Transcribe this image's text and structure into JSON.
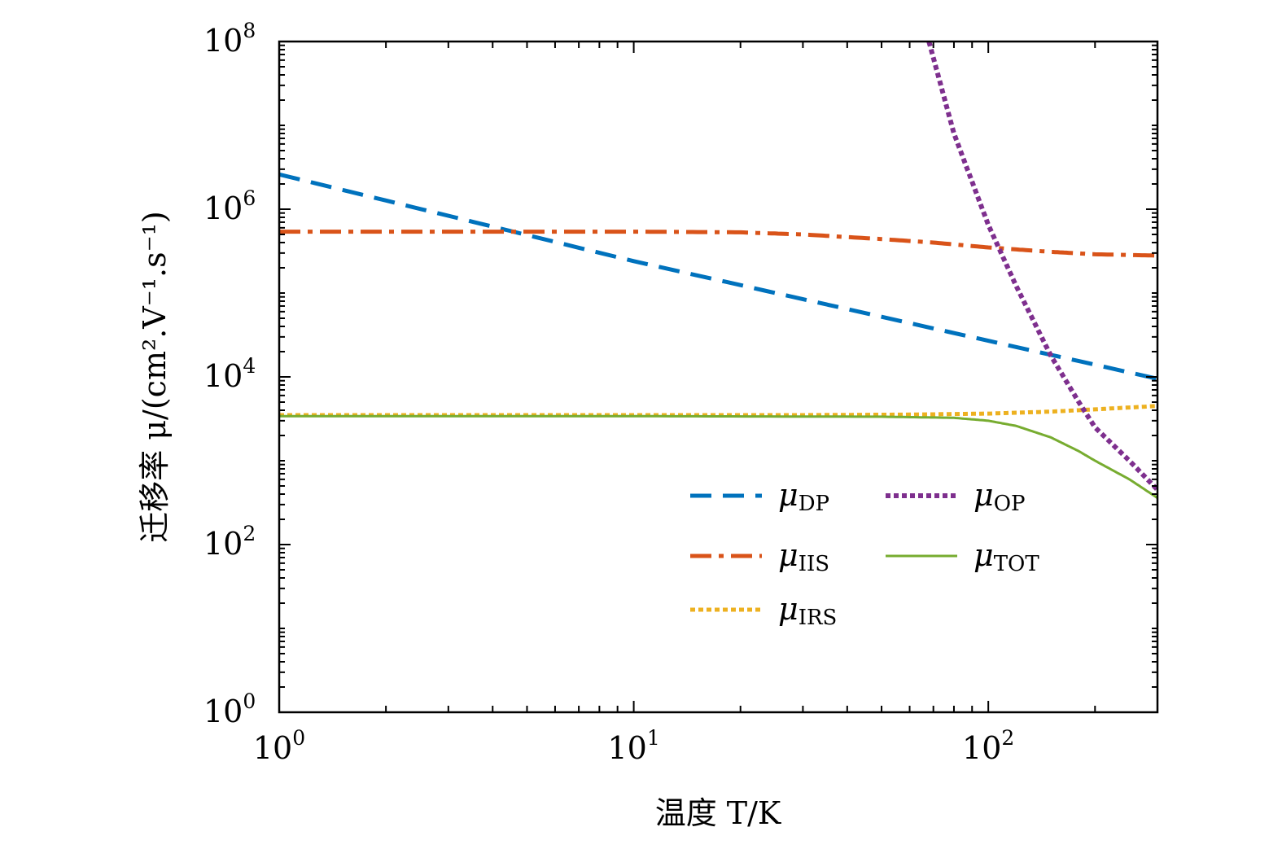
{
  "chart_data": {
    "type": "line",
    "xscale": "log",
    "yscale": "log",
    "xlim": [
      1,
      300
    ],
    "ylim": [
      1,
      100000000
    ],
    "xlabel": "温度 T/K",
    "ylabel": "迁移率 μ/(cm².V⁻¹.s⁻¹)",
    "grid": false,
    "legend_position": "bottom-right",
    "x_ticks": [
      {
        "base": "10",
        "exp": "0",
        "value": 1
      },
      {
        "base": "10",
        "exp": "1",
        "value": 10
      },
      {
        "base": "10",
        "exp": "2",
        "value": 100
      }
    ],
    "y_ticks": [
      {
        "base": "10",
        "exp": "0",
        "value": 1
      },
      {
        "base": "10",
        "exp": "2",
        "value": 100
      },
      {
        "base": "10",
        "exp": "4",
        "value": 10000
      },
      {
        "base": "10",
        "exp": "6",
        "value": 1000000
      },
      {
        "base": "10",
        "exp": "8",
        "value": 100000000
      }
    ],
    "series": [
      {
        "name": "μ",
        "sub": "DP",
        "color": "#0072BD",
        "style": "dashed",
        "width": 5,
        "x": [
          1,
          10,
          300
        ],
        "y": [
          2600000,
          240000,
          9500
        ]
      },
      {
        "name": "μ",
        "sub": "IIS",
        "color": "#D95319",
        "style": "dashdot",
        "width": 5,
        "x": [
          1,
          5,
          10,
          20,
          30,
          50,
          70,
          100,
          150,
          200,
          300
        ],
        "y": [
          540000,
          540000,
          540000,
          530000,
          500000,
          440000,
          400000,
          350000,
          310000,
          290000,
          280000
        ]
      },
      {
        "name": "μ",
        "sub": "IRS",
        "color": "#EDB120",
        "style": "dotted",
        "width": 5,
        "x": [
          1,
          10,
          30,
          60,
          100,
          150,
          200,
          300
        ],
        "y": [
          3500,
          3500,
          3500,
          3550,
          3650,
          3850,
          4100,
          4500
        ]
      },
      {
        "name": "μ",
        "sub": "OP",
        "color": "#7E2F8E",
        "style": "dotted",
        "width": 6,
        "x": [
          68,
          80,
          100,
          120,
          150,
          180,
          200,
          250,
          300
        ],
        "y": [
          100000000,
          8000000,
          650000,
          120000,
          18000,
          5000,
          2500,
          1000,
          450
        ]
      },
      {
        "name": "μ",
        "sub": "TOT",
        "color": "#77AC30",
        "style": "solid",
        "width": 3,
        "x": [
          1,
          10,
          50,
          80,
          100,
          120,
          150,
          180,
          200,
          250,
          300
        ],
        "y": [
          3400,
          3400,
          3350,
          3250,
          3000,
          2600,
          1900,
          1300,
          1000,
          600,
          360
        ]
      }
    ]
  }
}
